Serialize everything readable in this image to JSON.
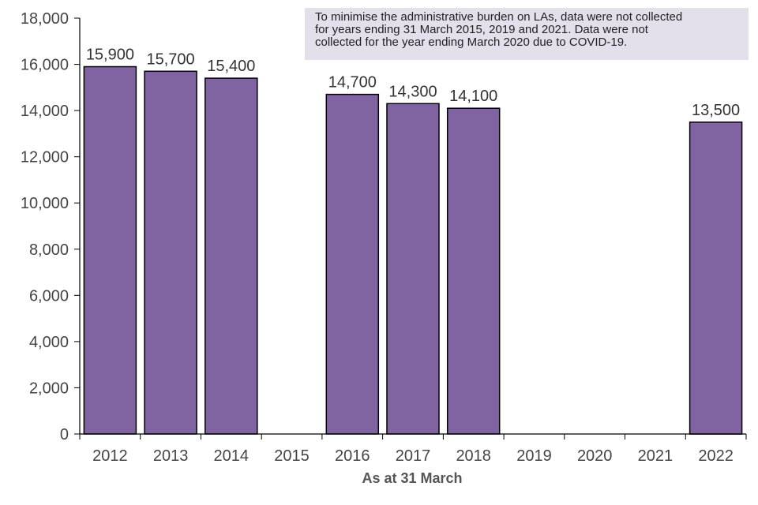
{
  "chart_data": {
    "type": "bar",
    "title": "",
    "xlabel": "As at 31 March",
    "ylabel": "",
    "ylim": [
      0,
      18000
    ],
    "ytick_step": 2000,
    "grid": false,
    "bar_color": "#8064a2",
    "categories": [
      "2012",
      "2013",
      "2014",
      "2015",
      "2016",
      "2017",
      "2018",
      "2019",
      "2020",
      "2021",
      "2022"
    ],
    "values": [
      15900,
      15700,
      15400,
      null,
      14700,
      14300,
      14100,
      null,
      null,
      null,
      13500
    ],
    "value_labels": [
      "15,900",
      "15,700",
      "15,400",
      "",
      "14,700",
      "14,300",
      "14,100",
      "",
      "",
      "",
      "13,500"
    ],
    "yticks": [
      "0",
      "2,000",
      "4,000",
      "6,000",
      "8,000",
      "10,000",
      "12,000",
      "14,000",
      "16,000",
      "18,000"
    ],
    "annotation": {
      "lines": [
        "To minimise the administrative  burden on LAs, data were not collected",
        "for years ending 31 March 2015, 2019 and 2021. Data were not",
        "collected for the year ending March 2020 due to COVID-19."
      ],
      "background": "#e3dfeb"
    }
  }
}
